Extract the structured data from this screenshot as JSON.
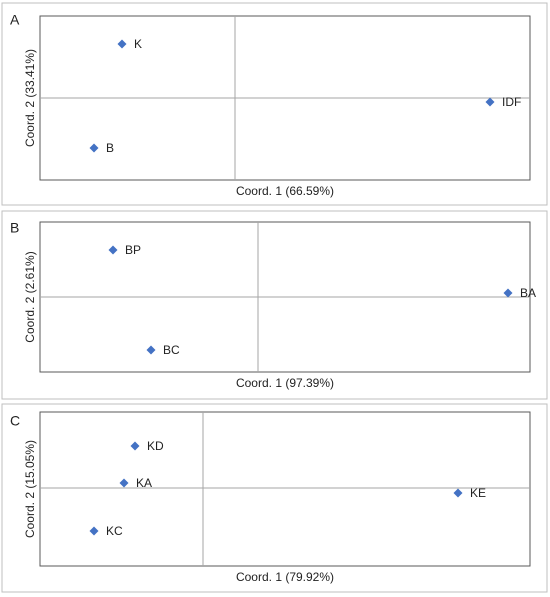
{
  "chart_data": [
    {
      "type": "scatter",
      "label": "A",
      "x_label": "Coord. 1 (66.59%)",
      "y_label": "Coord. 2 (33.41%)",
      "color": "#4472c4",
      "categories": [
        "K",
        "B",
        "IDF"
      ],
      "x": [
        -1.13,
        -1.41,
        2.55
      ],
      "values": [
        0.54,
        -0.5,
        -0.04
      ],
      "xlim": [
        -1.95,
        2.95
      ],
      "ylim": [
        -0.82,
        0.82
      ]
    },
    {
      "type": "scatter",
      "label": "B",
      "x_label": "Coord. 1 (97.39%)",
      "y_label": "Coord. 2 (2.61%)",
      "color": "#4472c4",
      "categories": [
        "BP",
        "BC",
        "BA"
      ],
      "x": [
        -1.45,
        -1.07,
        2.5
      ],
      "values": [
        0.47,
        -0.53,
        0.04
      ],
      "xlim": [
        -2.18,
        2.72
      ],
      "ylim": [
        -0.75,
        0.75
      ]
    },
    {
      "type": "scatter",
      "label": "C",
      "x_label": "Coord. 1 (79.92%)",
      "y_label": "Coord. 2 (15.05%)",
      "color": "#4472c4",
      "categories": [
        "KD",
        "KA",
        "KC",
        "KE"
      ],
      "x": [
        -0.68,
        -0.79,
        -1.09,
        2.55
      ],
      "values": [
        0.42,
        0.05,
        -0.43,
        -0.05
      ],
      "xlim": [
        -1.63,
        3.27
      ],
      "ylim": [
        -0.78,
        0.76
      ]
    }
  ]
}
